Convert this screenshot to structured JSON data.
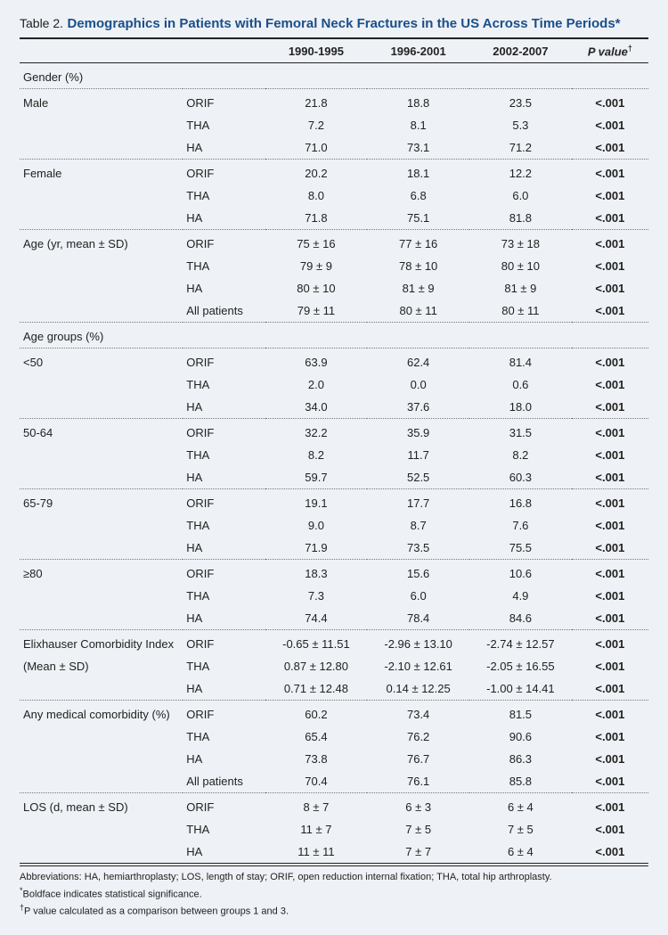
{
  "header": {
    "table_label": "Table 2.",
    "title": "Demographics in Patients with Femoral Neck Fractures in the US Across Time Periods*"
  },
  "columns": {
    "period1": "1990-1995",
    "period2": "1996-2001",
    "period3": "2002-2007",
    "pvalue": "P value",
    "pvalue_sup": "†"
  },
  "sections": [
    {
      "label": "Gender (%)",
      "groups": [
        {
          "label": "Male",
          "rows": [
            {
              "sub": "ORIF",
              "p1": "21.8",
              "p2": "18.8",
              "p3": "23.5",
              "pv": "<.001"
            },
            {
              "sub": "THA",
              "p1": "7.2",
              "p2": "8.1",
              "p3": "5.3",
              "pv": "<.001"
            },
            {
              "sub": "HA",
              "p1": "71.0",
              "p2": "73.1",
              "p3": "71.2",
              "pv": "<.001"
            }
          ]
        },
        {
          "label": "Female",
          "rows": [
            {
              "sub": "ORIF",
              "p1": "20.2",
              "p2": "18.1",
              "p3": "12.2",
              "pv": "<.001"
            },
            {
              "sub": "THA",
              "p1": "8.0",
              "p2": "6.8",
              "p3": "6.0",
              "pv": "<.001"
            },
            {
              "sub": "HA",
              "p1": "71.8",
              "p2": "75.1",
              "p3": "81.8",
              "pv": "<.001"
            }
          ]
        }
      ]
    },
    {
      "label": "Age (yr, mean ± SD)",
      "inline": true,
      "rows": [
        {
          "sub": "ORIF",
          "p1": "75 ± 16",
          "p2": "77 ± 16",
          "p3": "73 ± 18",
          "pv": "<.001"
        },
        {
          "sub": "THA",
          "p1": "79 ± 9",
          "p2": "78 ± 10",
          "p3": "80 ± 10",
          "pv": "<.001"
        },
        {
          "sub": "HA",
          "p1": "80 ± 10",
          "p2": "81 ± 9",
          "p3": "81 ± 9",
          "pv": "<.001"
        },
        {
          "sub": "All patients",
          "p1": "79 ± 11",
          "p2": "80 ± 11",
          "p3": "80 ± 11",
          "pv": "<.001"
        }
      ]
    },
    {
      "label": "Age groups (%)",
      "groups": [
        {
          "label": "<50",
          "rows": [
            {
              "sub": "ORIF",
              "p1": "63.9",
              "p2": "62.4",
              "p3": "81.4",
              "pv": "<.001"
            },
            {
              "sub": "THA",
              "p1": "2.0",
              "p2": "0.0",
              "p3": "0.6",
              "pv": "<.001"
            },
            {
              "sub": "HA",
              "p1": "34.0",
              "p2": "37.6",
              "p3": "18.0",
              "pv": "<.001"
            }
          ]
        },
        {
          "label": "50-64",
          "rows": [
            {
              "sub": "ORIF",
              "p1": "32.2",
              "p2": "35.9",
              "p3": "31.5",
              "pv": "<.001"
            },
            {
              "sub": "THA",
              "p1": "8.2",
              "p2": "11.7",
              "p3": "8.2",
              "pv": "<.001"
            },
            {
              "sub": "HA",
              "p1": "59.7",
              "p2": "52.5",
              "p3": "60.3",
              "pv": "<.001"
            }
          ]
        },
        {
          "label": "65-79",
          "rows": [
            {
              "sub": "ORIF",
              "p1": "19.1",
              "p2": "17.7",
              "p3": "16.8",
              "pv": "<.001"
            },
            {
              "sub": "THA",
              "p1": "9.0",
              "p2": "8.7",
              "p3": "7.6",
              "pv": "<.001"
            },
            {
              "sub": "HA",
              "p1": "71.9",
              "p2": "73.5",
              "p3": "75.5",
              "pv": "<.001"
            }
          ]
        },
        {
          "label": "≥80",
          "rows": [
            {
              "sub": "ORIF",
              "p1": "18.3",
              "p2": "15.6",
              "p3": "10.6",
              "pv": "<.001"
            },
            {
              "sub": "THA",
              "p1": "7.3",
              "p2": "6.0",
              "p3": "4.9",
              "pv": "<.001"
            },
            {
              "sub": "HA",
              "p1": "74.4",
              "p2": "78.4",
              "p3": "84.6",
              "pv": "<.001"
            }
          ]
        }
      ]
    },
    {
      "label": "Elixhauser Comorbidity Index",
      "label2": "(Mean ± SD)",
      "inline": true,
      "rows": [
        {
          "sub": "ORIF",
          "p1": "-0.65 ± 11.51",
          "p2": "-2.96 ± 13.10",
          "p3": "-2.74 ± 12.57",
          "pv": "<.001"
        },
        {
          "sub": "THA",
          "p1": "0.87 ± 12.80",
          "p2": "-2.10 ± 12.61",
          "p3": "-2.05 ± 16.55",
          "pv": "<.001"
        },
        {
          "sub": "HA",
          "p1": "0.71 ± 12.48",
          "p2": "0.14 ± 12.25",
          "p3": "-1.00 ± 14.41",
          "pv": "<.001"
        }
      ]
    },
    {
      "label": "Any medical comorbidity (%)",
      "inline": true,
      "rows": [
        {
          "sub": "ORIF",
          "p1": "60.2",
          "p2": "73.4",
          "p3": "81.5",
          "pv": "<.001"
        },
        {
          "sub": "THA",
          "p1": "65.4",
          "p2": "76.2",
          "p3": "90.6",
          "pv": "<.001"
        },
        {
          "sub": "HA",
          "p1": "73.8",
          "p2": "76.7",
          "p3": "86.3",
          "pv": "<.001"
        },
        {
          "sub": "All patients",
          "p1": "70.4",
          "p2": "76.1",
          "p3": "85.8",
          "pv": "<.001"
        }
      ]
    },
    {
      "label": "LOS (d, mean ± SD)",
      "inline": true,
      "last": true,
      "rows": [
        {
          "sub": "ORIF",
          "p1": "8 ± 7",
          "p2": "6 ± 3",
          "p3": "6 ± 4",
          "pv": "<.001"
        },
        {
          "sub": "THA",
          "p1": "11 ± 7",
          "p2": "7 ± 5",
          "p3": "7 ± 5",
          "pv": "<.001"
        },
        {
          "sub": "HA",
          "p1": "11 ± 11",
          "p2": "7 ± 7",
          "p3": "6 ± 4",
          "pv": "<.001"
        }
      ]
    }
  ],
  "footnotes": {
    "abbrev": "Abbreviations: HA, hemiarthroplasty; LOS, length of stay; ORIF, open reduction internal fixation; THA, total hip arthroplasty.",
    "note1_sup": "*",
    "note1": "Boldface indicates statistical significance.",
    "note2_sup": "†",
    "note2": "P value calculated as a comparison between groups 1 and 3."
  }
}
